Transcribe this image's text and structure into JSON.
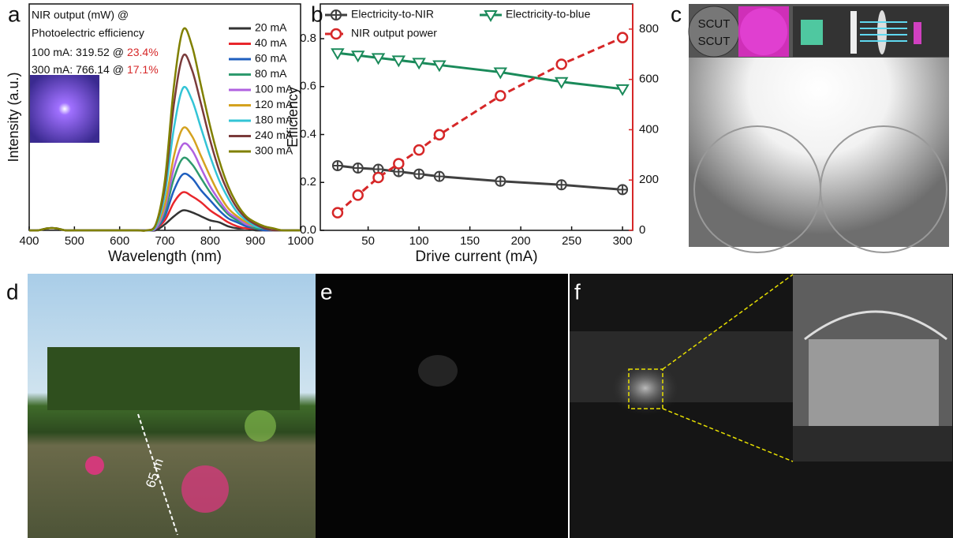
{
  "panel_labels": [
    "a",
    "b",
    "c",
    "d",
    "e",
    "f"
  ],
  "photos": {
    "c_labels": [
      "SCUT",
      "SCUT"
    ],
    "d_distance": "65 m"
  },
  "chart_data": [
    {
      "type": "line",
      "smooth": true,
      "xlabel": "Wavelength (nm)",
      "ylabel": "Intensity (a.u.)",
      "annotations": [
        "NIR output (mW) @",
        "Photoelectric efficiency",
        "100 mA: 319.52 @",
        "23.4%",
        "300 mA: 766.14 @",
        "17.1%"
      ],
      "annotation_highlight_color": "#d62728",
      "legend": "upper right",
      "xlim": [
        400,
        1000
      ],
      "xticks": [
        400,
        500,
        600,
        700,
        800,
        900,
        1000
      ],
      "ylim": [
        0,
        1.13
      ],
      "x": [
        400,
        420,
        440,
        460,
        480,
        500,
        520,
        540,
        560,
        580,
        600,
        620,
        640,
        660,
        680,
        700,
        720,
        740,
        760,
        780,
        800,
        820,
        840,
        860,
        880,
        900,
        920,
        940,
        960,
        980,
        1000
      ],
      "series": [
        {
          "name": "20 mA",
          "color": "#333333",
          "values": [
            0,
            0,
            0.01,
            0.01,
            0,
            0,
            0,
            0,
            0,
            0,
            0,
            0,
            0,
            0,
            0,
            0.03,
            0.07,
            0.1,
            0.09,
            0.07,
            0.05,
            0.04,
            0.02,
            0.01,
            0.01,
            0,
            0,
            0,
            0,
            0,
            0
          ]
        },
        {
          "name": "40 mA",
          "color": "#e8272c",
          "values": [
            0,
            0,
            0.01,
            0.01,
            0,
            0,
            0,
            0,
            0,
            0,
            0,
            0,
            0,
            0,
            0.01,
            0.05,
            0.14,
            0.19,
            0.17,
            0.14,
            0.1,
            0.07,
            0.04,
            0.02,
            0.01,
            0.01,
            0,
            0,
            0,
            0,
            0
          ]
        },
        {
          "name": "60 mA",
          "color": "#1f5fbf",
          "values": [
            0,
            0,
            0.01,
            0.01,
            0,
            0,
            0,
            0,
            0,
            0,
            0,
            0,
            0,
            0,
            0.01,
            0.07,
            0.2,
            0.28,
            0.26,
            0.2,
            0.15,
            0.1,
            0.06,
            0.04,
            0.02,
            0.01,
            0,
            0,
            0,
            0,
            0
          ]
        },
        {
          "name": "80 mA",
          "color": "#2e9a6e",
          "values": [
            0,
            0,
            0.01,
            0.01,
            0,
            0,
            0,
            0,
            0,
            0,
            0,
            0,
            0,
            0,
            0.01,
            0.09,
            0.26,
            0.36,
            0.33,
            0.26,
            0.19,
            0.13,
            0.08,
            0.05,
            0.03,
            0.01,
            0.01,
            0,
            0,
            0,
            0
          ]
        },
        {
          "name": "100 mA",
          "color": "#b061e0",
          "values": [
            0,
            0,
            0.01,
            0.01,
            0,
            0,
            0,
            0,
            0,
            0,
            0,
            0,
            0,
            0,
            0.01,
            0.11,
            0.31,
            0.43,
            0.4,
            0.31,
            0.22,
            0.15,
            0.09,
            0.06,
            0.03,
            0.02,
            0.01,
            0,
            0,
            0,
            0
          ]
        },
        {
          "name": "120 mA",
          "color": "#d4a21f",
          "values": [
            0,
            0,
            0.01,
            0.01,
            0,
            0,
            0,
            0,
            0,
            0,
            0,
            0,
            0,
            0,
            0.02,
            0.13,
            0.37,
            0.51,
            0.47,
            0.37,
            0.27,
            0.18,
            0.11,
            0.07,
            0.04,
            0.02,
            0.01,
            0,
            0,
            0,
            0
          ]
        },
        {
          "name": "180 mA",
          "color": "#33c4d6",
          "values": [
            0,
            0,
            0.01,
            0.01,
            0,
            0,
            0,
            0,
            0,
            0,
            0,
            0,
            0,
            0,
            0.02,
            0.18,
            0.51,
            0.71,
            0.65,
            0.51,
            0.37,
            0.25,
            0.16,
            0.09,
            0.05,
            0.02,
            0.01,
            0,
            0,
            0,
            0
          ]
        },
        {
          "name": "240 mA",
          "color": "#7a3b3b",
          "values": [
            0,
            0,
            0.01,
            0.01,
            0,
            0,
            0,
            0,
            0,
            0,
            0,
            0,
            0,
            0,
            0.03,
            0.22,
            0.63,
            0.87,
            0.8,
            0.63,
            0.45,
            0.3,
            0.19,
            0.11,
            0.06,
            0.03,
            0.01,
            0,
            0,
            0,
            0
          ]
        },
        {
          "name": "300 mA",
          "color": "#808000",
          "values": [
            0,
            0,
            0.01,
            0.01,
            0,
            0,
            0,
            0,
            0,
            0,
            0,
            0,
            0,
            0,
            0.03,
            0.25,
            0.72,
            1.0,
            0.92,
            0.72,
            0.52,
            0.35,
            0.22,
            0.13,
            0.07,
            0.04,
            0.02,
            0.01,
            0,
            0,
            0
          ]
        }
      ]
    },
    {
      "type": "line",
      "xlabel": "Drive current (mA)",
      "ylabel": "Efficiency",
      "legend": "top",
      "xlim": [
        3,
        310
      ],
      "xticks": [
        50,
        100,
        150,
        200,
        250,
        300
      ],
      "ylim": [
        0,
        0.945
      ],
      "yticks": [
        {
          "value": 0,
          "label": "0.0"
        },
        0.2,
        0.4,
        0.6,
        0.8
      ],
      "y2lim": [
        0,
        900
      ],
      "y2ticks": [
        0,
        200,
        400,
        600,
        800
      ],
      "y2color": "#d62728",
      "x": [
        20,
        40,
        60,
        80,
        100,
        120,
        180,
        240,
        300
      ],
      "series": [
        {
          "name": "Electricity-to-NIR",
          "color": "#404040",
          "marker": "circle-plus",
          "values": [
            0.27,
            0.26,
            0.255,
            0.245,
            0.235,
            0.225,
            0.205,
            0.19,
            0.17
          ]
        },
        {
          "name": "Electricity-to-blue",
          "color": "#1a8a5a",
          "marker": "triangle-down",
          "values": [
            0.74,
            0.73,
            0.72,
            0.71,
            0.7,
            0.69,
            0.66,
            0.62,
            0.59
          ]
        },
        {
          "name": "NIR output power",
          "color": "#d62728",
          "marker": "circle",
          "dash": true,
          "axis": "y2",
          "values": [
            70,
            140,
            210,
            265,
            319.52,
            380,
            535,
            660,
            766.14
          ]
        }
      ]
    }
  ]
}
